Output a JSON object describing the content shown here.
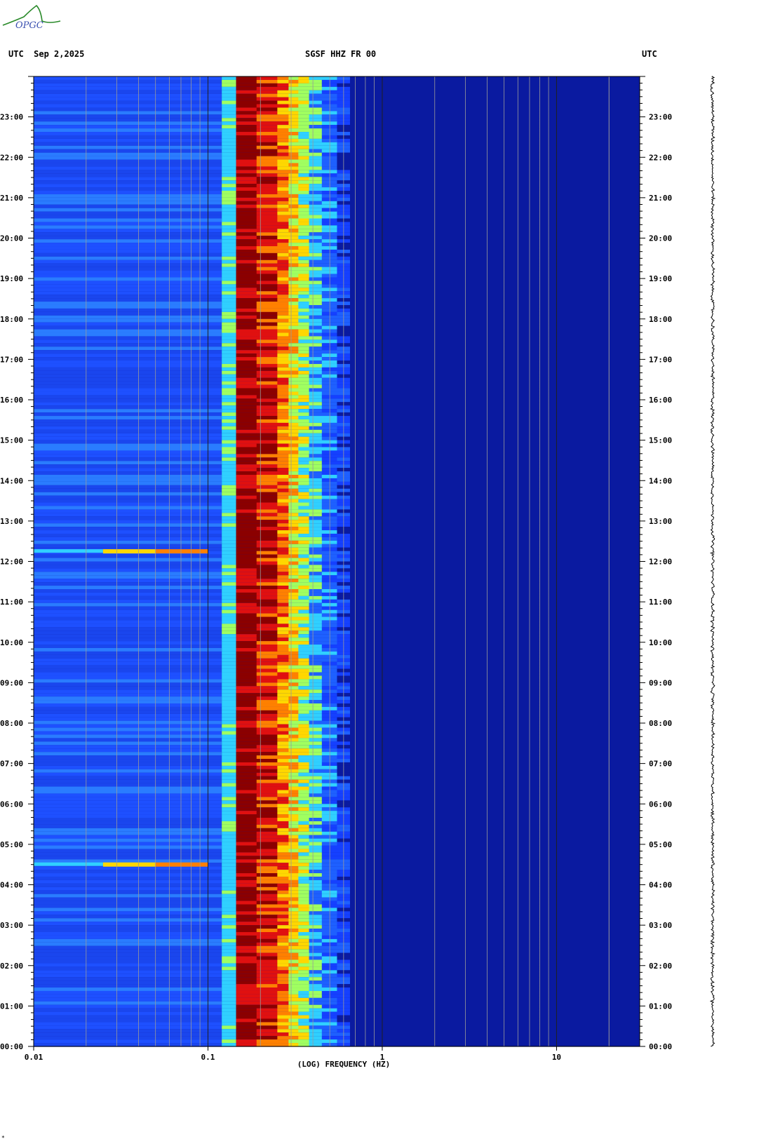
{
  "header": {
    "logo_text": "OPGC",
    "left": "UTC  Sep 2,2025",
    "center": "SGSF HHZ FR 00",
    "right": "UTC"
  },
  "footer_mark": "*",
  "chart_data": {
    "type": "heatmap",
    "title": "SGSF HHZ FR 00",
    "xlabel": "(LOG) FREQUENCY (HZ)",
    "ylabel": "UTC",
    "x_scale": "log",
    "xlim": [
      0.01,
      30
    ],
    "x_ticks": [
      "0.01",
      "0.1",
      "1",
      "10"
    ],
    "ylim": [
      "00:00",
      "24:00"
    ],
    "y_ticks": [
      "00:00",
      "01:00",
      "02:00",
      "03:00",
      "04:00",
      "05:00",
      "06:00",
      "07:00",
      "08:00",
      "09:00",
      "10:00",
      "11:00",
      "12:00",
      "13:00",
      "14:00",
      "15:00",
      "16:00",
      "17:00",
      "18:00",
      "19:00",
      "20:00",
      "21:00",
      "22:00",
      "23:00"
    ],
    "colormap": "jet",
    "bands_hz": [
      {
        "from": 0.01,
        "to": 0.12,
        "level": "low-medium",
        "color": "#1e50ff"
      },
      {
        "from": 0.12,
        "to": 0.145,
        "level": "medium",
        "color": "#30d0ff"
      },
      {
        "from": 0.145,
        "to": 0.28,
        "level": "peak",
        "color": "#8b0000"
      },
      {
        "from": 0.28,
        "to": 0.4,
        "level": "high",
        "color": "#ffd700"
      },
      {
        "from": 0.4,
        "to": 0.6,
        "level": "medium",
        "color": "#20c0ff"
      },
      {
        "from": 0.6,
        "to": 30,
        "level": "low",
        "color": "#0a1aa0"
      }
    ],
    "events": [
      {
        "time": "04:30",
        "freq_range_hz": [
          0.01,
          0.1
        ],
        "level": "high"
      },
      {
        "time": "12:15",
        "freq_range_hz": [
          0.01,
          0.1
        ],
        "level": "high"
      }
    ]
  }
}
